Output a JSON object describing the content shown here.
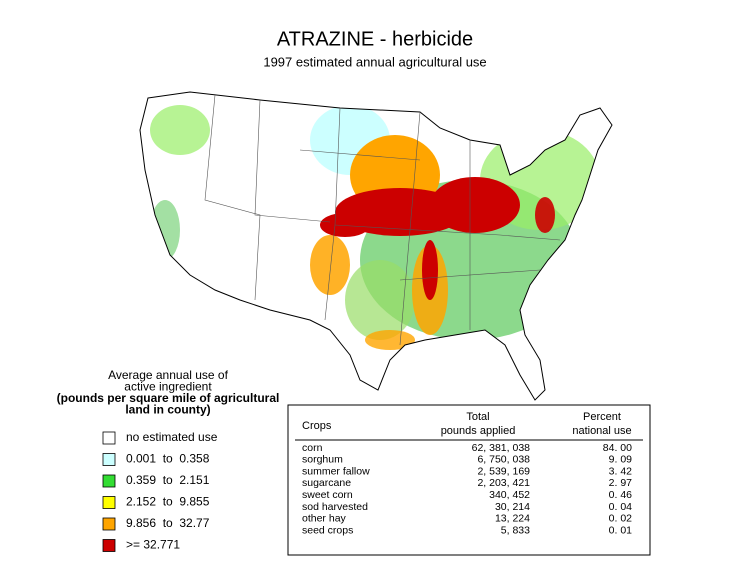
{
  "title": "ATRAZINE - herbicide",
  "subtitle": "1997 estimated annual agricultural use",
  "legend": {
    "title": [
      "Average annual use of",
      "active ingredient",
      "(pounds per square mile of agricultural",
      "land in county)"
    ],
    "items": [
      {
        "label": "no estimated use",
        "color": "#ffffff"
      },
      {
        "label": "0.001  to  0.358",
        "color": "#ccffff"
      },
      {
        "label": "0.359  to  2.151",
        "color": "#33dd33"
      },
      {
        "label": "2.152  to  9.855",
        "color": "#ffff00"
      },
      {
        "label": "9.856  to  32.77",
        "color": "#ffa500"
      },
      {
        "label": ">= 32.771",
        "color": "#cc0000"
      }
    ]
  },
  "table": {
    "headers": [
      [
        "Crops"
      ],
      [
        "Total",
        "pounds applied"
      ],
      [
        "Percent",
        "national use"
      ]
    ],
    "rows": [
      [
        "corn",
        "62, 381, 038",
        "84. 00"
      ],
      [
        "sorghum",
        "6, 750, 038",
        "9. 09"
      ],
      [
        "summer fallow",
        "2, 539, 169",
        "3. 42"
      ],
      [
        "sugarcane",
        "2, 203, 421",
        "2. 97"
      ],
      [
        "sweet corn",
        "340, 452",
        "0. 46"
      ],
      [
        "sod harvested",
        "30, 214",
        "0. 04"
      ],
      [
        "other hay",
        "13, 224",
        "0. 02"
      ],
      [
        "seed crops",
        "5, 833",
        "0. 01"
      ]
    ]
  }
}
